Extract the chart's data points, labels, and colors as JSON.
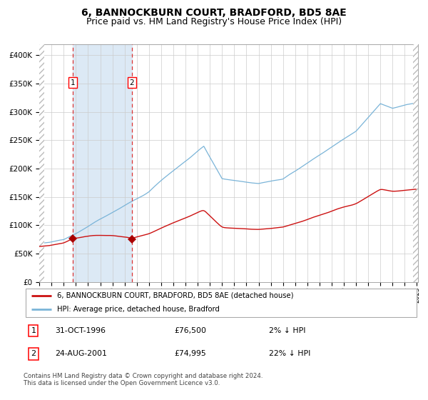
{
  "title": "6, BANNOCKBURN COURT, BRADFORD, BD5 8AE",
  "subtitle": "Price paid vs. HM Land Registry's House Price Index (HPI)",
  "title_fontsize": 10,
  "subtitle_fontsize": 9,
  "sale1_price": 76500,
  "sale1_year": 1996.833,
  "sale2_price": 74995,
  "sale2_year": 2001.622,
  "hpi_line_color": "#7ab4d8",
  "price_line_color": "#cc1111",
  "sale_marker_color": "#aa0000",
  "vline_color": "#dd3333",
  "shade_color": "#dce9f5",
  "grid_color": "#cccccc",
  "hatch_color": "#bbbbbb",
  "legend_line1": "6, BANNOCKBURN COURT, BRADFORD, BD5 8AE (detached house)",
  "legend_line2": "HPI: Average price, detached house, Bradford",
  "annotation1_label": "1",
  "annotation1_date": "31-OCT-1996",
  "annotation1_price": "£76,500",
  "annotation1_pct": "2% ↓ HPI",
  "annotation2_label": "2",
  "annotation2_date": "24-AUG-2001",
  "annotation2_price": "£74,995",
  "annotation2_pct": "22% ↓ HPI",
  "footer": "Contains HM Land Registry data © Crown copyright and database right 2024.\nThis data is licensed under the Open Government Licence v3.0.",
  "ylim": [
    0,
    420000
  ],
  "yticks": [
    0,
    50000,
    100000,
    150000,
    200000,
    250000,
    300000,
    350000,
    400000
  ],
  "ytick_labels": [
    "£0",
    "£50K",
    "£100K",
    "£150K",
    "£200K",
    "£250K",
    "£300K",
    "£350K",
    "£400K"
  ],
  "background_color": "#ffffff",
  "plot_bg_color": "#ffffff"
}
